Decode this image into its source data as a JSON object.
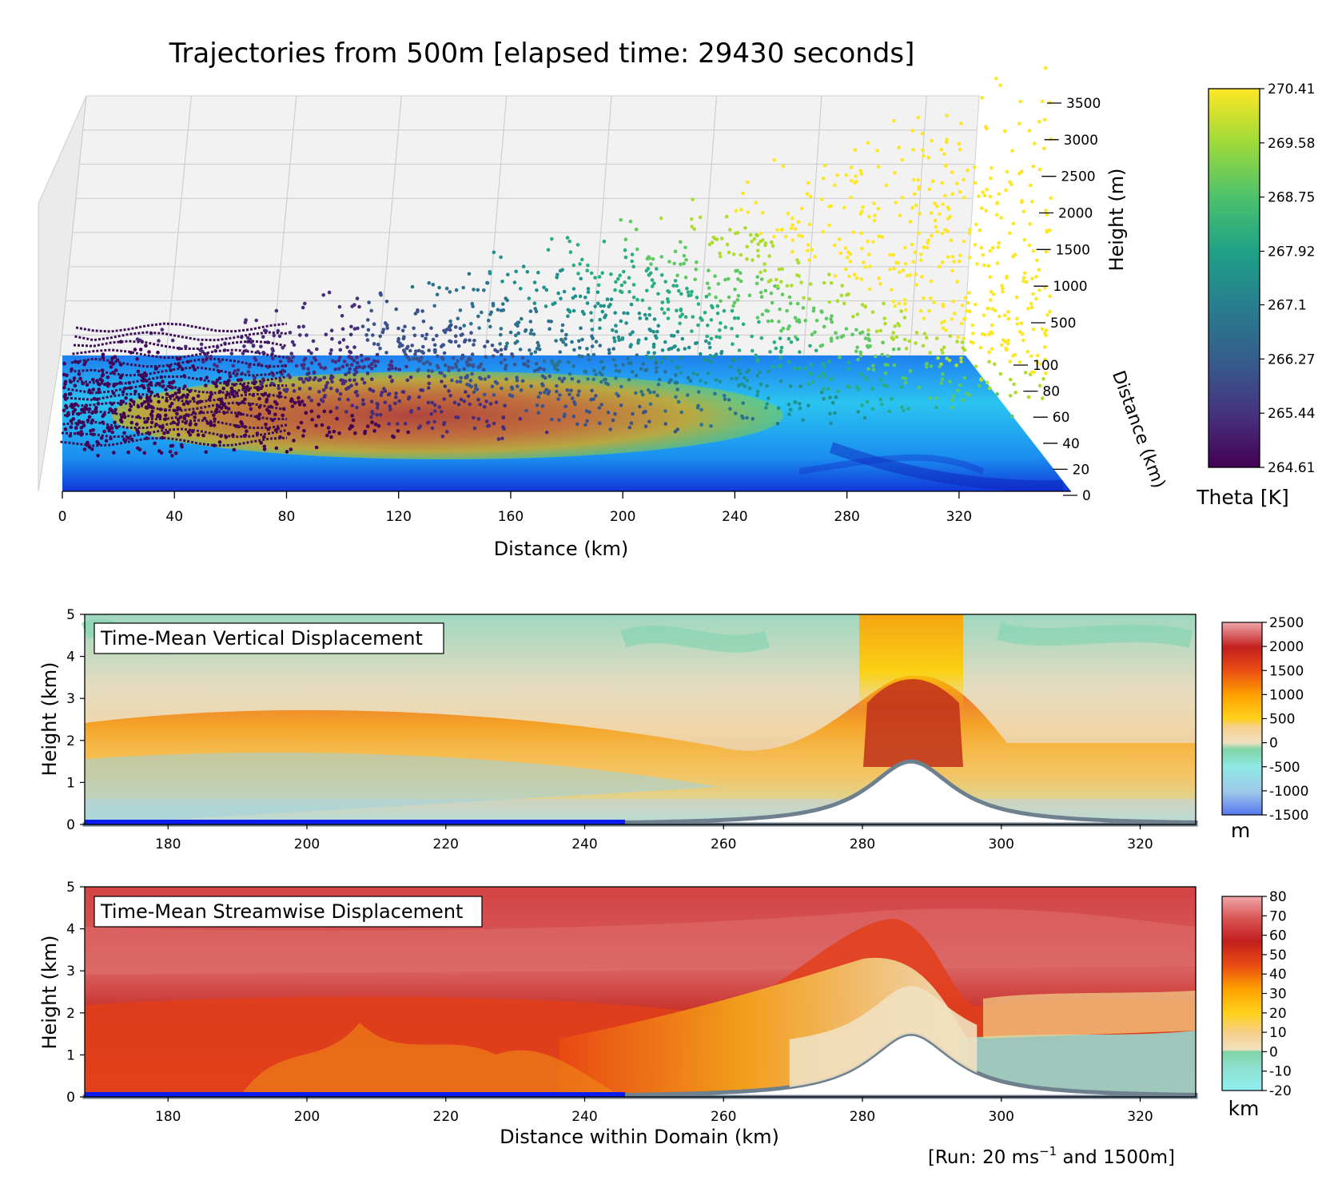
{
  "chart_data": [
    {
      "type": "scatter",
      "title": "Trajectories from 500m [elapsed time: 29430 seconds]",
      "xlabel": "Distance (km)",
      "ylabel": "Distance (km)",
      "zlabel": "Height (m)",
      "x_ticks": [
        "0",
        "40",
        "80",
        "120",
        "160",
        "200",
        "240",
        "280",
        "320"
      ],
      "y_ticks": [
        "0",
        "20",
        "40",
        "60",
        "80",
        "100"
      ],
      "z_ticks": [
        "500",
        "1000",
        "1500",
        "2000",
        "2500",
        "3000",
        "3500"
      ],
      "xlim": [
        0,
        340
      ],
      "ylim": [
        0,
        100
      ],
      "zlim": [
        0,
        3500
      ],
      "colorbar": {
        "label": "Theta [K]",
        "ticks": [
          "270.41",
          "269.58",
          "268.75",
          "267.92",
          "267.1",
          "266.27",
          "265.44",
          "264.61"
        ],
        "range": [
          264.61,
          270.41
        ],
        "colormap": "viridis"
      },
      "grid": true
    },
    {
      "type": "heatmap",
      "title": "Time-Mean Vertical Displacement",
      "ylabel": "Height (km)",
      "x_ticks": [
        "180",
        "200",
        "220",
        "240",
        "260",
        "280",
        "300",
        "320"
      ],
      "y_ticks": [
        "0",
        "1",
        "2",
        "3",
        "4",
        "5"
      ],
      "xlim": [
        168,
        328
      ],
      "ylim": [
        0,
        5
      ],
      "terrain_peak": {
        "x": 287,
        "height": 1.5
      },
      "colorbar": {
        "label": "m",
        "ticks": [
          "2500",
          "2000",
          "1500",
          "1000",
          "500",
          "0",
          "-500",
          "-1000",
          "-1500"
        ],
        "range": [
          -1500,
          2500
        ]
      }
    },
    {
      "type": "heatmap",
      "title": "Time-Mean Streamwise Displacement",
      "ylabel": "Height (km)",
      "xlabel": "Distance within Domain (km)",
      "x_ticks": [
        "180",
        "200",
        "220",
        "240",
        "260",
        "280",
        "300",
        "320"
      ],
      "y_ticks": [
        "0",
        "1",
        "2",
        "3",
        "4",
        "5"
      ],
      "xlim": [
        168,
        328
      ],
      "ylim": [
        0,
        5
      ],
      "terrain_peak": {
        "x": 287,
        "height": 1.5
      },
      "colorbar": {
        "label": "km",
        "ticks": [
          "80",
          "70",
          "60",
          "50",
          "40",
          "30",
          "20",
          "10",
          "0",
          "-10",
          "-20"
        ],
        "range": [
          -20,
          80
        ]
      }
    }
  ],
  "footer": {
    "run_prefix": "[Run: 20 ms",
    "run_sup": "−1",
    "run_suffix": " and 1500m]"
  }
}
